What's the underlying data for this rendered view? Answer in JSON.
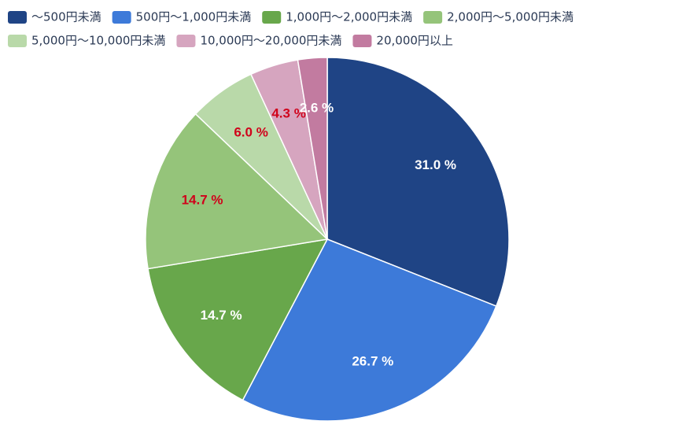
{
  "chart_data": {
    "type": "pie",
    "categories": [
      "〜500円未満",
      "500円〜1,000円未満",
      "1,000円〜2,000円未満",
      "2,000円〜5,000円未満",
      "5,000円〜10,000円未満",
      "10,000円〜20,000円未満",
      "20,000円以上"
    ],
    "values": [
      31.0,
      26.7,
      14.7,
      14.7,
      6.0,
      4.3,
      2.6
    ],
    "value_labels": [
      "31.0 %",
      "26.7 %",
      "14.7 %",
      "14.7 %",
      "6.0 %",
      "4.3 %",
      "2.6 %"
    ],
    "colors": [
      "#1f4485",
      "#3d7ad9",
      "#68a74b",
      "#95c47a",
      "#b9d9a9",
      "#d6a5bf",
      "#c27ba0"
    ],
    "label_colors": [
      "#ffffff",
      "#ffffff",
      "#ffffff",
      "#d0021b",
      "#d0021b",
      "#d0021b",
      "#ffffff"
    ],
    "legend": "top-left"
  }
}
